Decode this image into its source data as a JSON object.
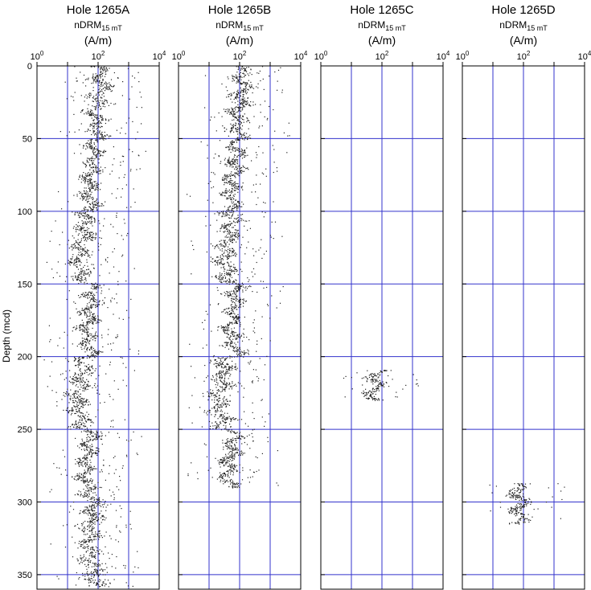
{
  "figure": {
    "ylabel": "Depth (mcd)"
  },
  "chart_data": {
    "type": "scatter",
    "y_axis": {
      "label": "Depth (mcd)",
      "range": [
        0,
        360
      ],
      "reversed": true,
      "ticks": [
        0,
        50,
        100,
        150,
        200,
        250,
        300,
        350
      ]
    },
    "x_axis": {
      "scale": "log",
      "range": [
        1,
        10000
      ],
      "ticks": [
        "10⁰",
        "10²",
        "10⁴"
      ],
      "tick_values": [
        1,
        100,
        10000
      ]
    },
    "grid": {
      "on": true,
      "vertical_color": "#3333cc",
      "horizontal_color": "#3333cc",
      "depth_lines_on_each_axis_multiple": 50
    },
    "panels": [
      {
        "title": "Hole 1265A",
        "subtitle_main": "nDRM",
        "subtitle_sub": "15 mT",
        "unit": "(A/m)",
        "segments": [
          {
            "from": 0,
            "to": 50,
            "center": 100,
            "spread": 0.35
          },
          {
            "from": 50,
            "to": 100,
            "center": 60,
            "spread": 0.3
          },
          {
            "from": 100,
            "to": 150,
            "center": 30,
            "spread": 0.35
          },
          {
            "from": 150,
            "to": 200,
            "center": 50,
            "spread": 0.3
          },
          {
            "from": 200,
            "to": 250,
            "center": 25,
            "spread": 0.4
          },
          {
            "from": 250,
            "to": 300,
            "center": 45,
            "spread": 0.3
          },
          {
            "from": 300,
            "to": 358,
            "center": 60,
            "spread": 0.4
          }
        ]
      },
      {
        "title": "Hole 1265B",
        "subtitle_main": "nDRM",
        "subtitle_sub": "15 mT",
        "unit": "(A/m)",
        "segments": [
          {
            "from": 0,
            "to": 50,
            "center": 100,
            "spread": 0.35
          },
          {
            "from": 50,
            "to": 100,
            "center": 60,
            "spread": 0.3
          },
          {
            "from": 100,
            "to": 150,
            "center": 40,
            "spread": 0.35
          },
          {
            "from": 150,
            "to": 200,
            "center": 60,
            "spread": 0.3
          },
          {
            "from": 200,
            "to": 250,
            "center": 25,
            "spread": 0.4
          },
          {
            "from": 250,
            "to": 290,
            "center": 50,
            "spread": 0.3
          }
        ]
      },
      {
        "title": "Hole 1265C",
        "subtitle_main": "nDRM",
        "subtitle_sub": "15 mT",
        "unit": "(A/m)",
        "segments": [
          {
            "from": 209,
            "to": 230,
            "center": 60,
            "spread": 0.3
          }
        ]
      },
      {
        "title": "Hole 1265D",
        "subtitle_main": "nDRM",
        "subtitle_sub": "15 mT",
        "unit": "(A/m)",
        "segments": [
          {
            "from": 287,
            "to": 315,
            "center": 60,
            "spread": 0.3
          }
        ]
      }
    ]
  }
}
